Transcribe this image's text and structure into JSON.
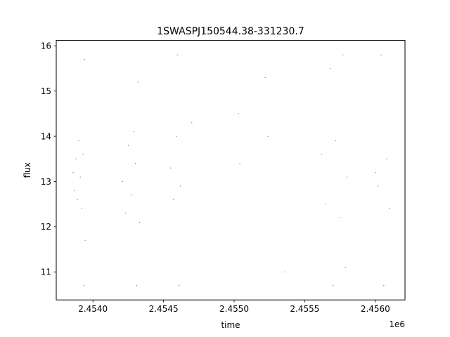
{
  "chart_data": {
    "type": "scatter",
    "title": "1SWASPJ150544.38-331230.7",
    "xlabel": "time",
    "ylabel": "flux",
    "x_offset_label": "1e6",
    "x_offset": 1000000,
    "xlim": [
      2453740,
      2456210
    ],
    "ylim": [
      10.38,
      16.12
    ],
    "x_ticks": [
      {
        "value": 2454000,
        "label": "2.4540"
      },
      {
        "value": 2454500,
        "label": "2.4545"
      },
      {
        "value": 2455000,
        "label": "2.4550"
      },
      {
        "value": 2455500,
        "label": "2.4555"
      },
      {
        "value": 2456000,
        "label": "2.4560"
      }
    ],
    "y_ticks": [
      {
        "value": 11,
        "label": "11"
      },
      {
        "value": 12,
        "label": "12"
      },
      {
        "value": 13,
        "label": "13"
      },
      {
        "value": 14,
        "label": "14"
      },
      {
        "value": 15,
        "label": "15"
      },
      {
        "value": 16,
        "label": "16"
      }
    ],
    "grid": false,
    "marker_color": "#1f77b4",
    "series": [
      {
        "values": [
          {
            "x": 2453860,
            "y": 13.2
          },
          {
            "x": 2453870,
            "y": 12.8
          },
          {
            "x": 2453880,
            "y": 13.5
          },
          {
            "x": 2453890,
            "y": 12.6
          },
          {
            "x": 2453900,
            "y": 13.9
          },
          {
            "x": 2453910,
            "y": 13.1
          },
          {
            "x": 2453920,
            "y": 12.4
          },
          {
            "x": 2453930,
            "y": 13.6
          },
          {
            "x": 2453940,
            "y": 15.7
          },
          {
            "x": 2453935,
            "y": 10.7
          },
          {
            "x": 2453945,
            "y": 11.7
          },
          {
            "x": 2454210,
            "y": 13.0
          },
          {
            "x": 2454230,
            "y": 12.3
          },
          {
            "x": 2454250,
            "y": 13.8
          },
          {
            "x": 2454270,
            "y": 12.7
          },
          {
            "x": 2454290,
            "y": 14.1
          },
          {
            "x": 2454300,
            "y": 13.4
          },
          {
            "x": 2454310,
            "y": 10.7
          },
          {
            "x": 2454320,
            "y": 15.2
          },
          {
            "x": 2454330,
            "y": 12.1
          },
          {
            "x": 2454550,
            "y": 13.3
          },
          {
            "x": 2454570,
            "y": 12.6
          },
          {
            "x": 2454590,
            "y": 14.0
          },
          {
            "x": 2454600,
            "y": 15.8
          },
          {
            "x": 2454610,
            "y": 10.7
          },
          {
            "x": 2454620,
            "y": 12.9
          },
          {
            "x": 2454700,
            "y": 14.3
          },
          {
            "x": 2455030,
            "y": 14.5
          },
          {
            "x": 2455040,
            "y": 13.4
          },
          {
            "x": 2455220,
            "y": 15.3
          },
          {
            "x": 2455240,
            "y": 14.0
          },
          {
            "x": 2455360,
            "y": 11.0
          },
          {
            "x": 2455620,
            "y": 13.6
          },
          {
            "x": 2455650,
            "y": 12.5
          },
          {
            "x": 2455680,
            "y": 15.5
          },
          {
            "x": 2455700,
            "y": 10.7
          },
          {
            "x": 2455720,
            "y": 13.9
          },
          {
            "x": 2455750,
            "y": 12.2
          },
          {
            "x": 2455770,
            "y": 15.8
          },
          {
            "x": 2455790,
            "y": 11.1
          },
          {
            "x": 2455800,
            "y": 13.1
          },
          {
            "x": 2456000,
            "y": 13.2
          },
          {
            "x": 2456020,
            "y": 12.9
          },
          {
            "x": 2456040,
            "y": 15.8
          },
          {
            "x": 2456060,
            "y": 10.7
          },
          {
            "x": 2456080,
            "y": 13.5
          },
          {
            "x": 2456100,
            "y": 12.4
          }
        ]
      }
    ]
  }
}
